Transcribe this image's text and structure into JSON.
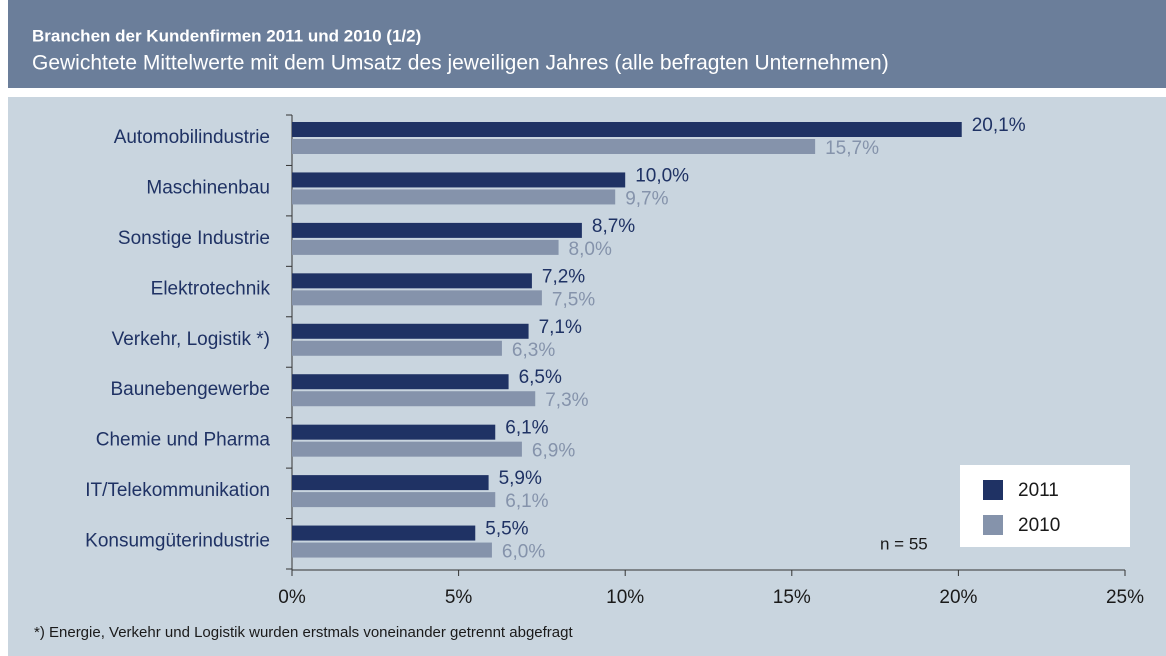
{
  "chart_data": {
    "type": "bar",
    "orientation": "horizontal",
    "title": "Branchen der Kundenfirmen 2011 und 2010 (1/2)",
    "subtitle": "Gewichtete Mittelwerte mit dem Umsatz des jeweiligen Jahres (alle befragten Unternehmen)",
    "categories": [
      "Automobilindustrie",
      "Maschinenbau",
      "Sonstige Industrie",
      "Elektrotechnik",
      "Verkehr, Logistik *)",
      "Baunebengewerbe",
      "Chemie und Pharma",
      "IT/Telekommunikation",
      "Konsumgüterindustrie"
    ],
    "series": [
      {
        "name": "2011",
        "color": "#1f3264",
        "label_color": "#1f3264",
        "values": [
          20.1,
          10.0,
          8.7,
          7.2,
          7.1,
          6.5,
          6.1,
          5.9,
          5.5
        ],
        "value_labels": [
          "20,1%",
          "10,0%",
          "8,7%",
          "7,2%",
          "7,1%",
          "6,5%",
          "6,1%",
          "5,9%",
          "5,5%"
        ]
      },
      {
        "name": "2010",
        "color": "#8593ab",
        "label_color": "#8593ab",
        "values": [
          15.7,
          9.7,
          8.0,
          7.5,
          6.3,
          7.3,
          6.9,
          6.1,
          6.0
        ],
        "value_labels": [
          "15,7%",
          "9,7%",
          "8,0%",
          "7,5%",
          "6,3%",
          "7,3%",
          "6,9%",
          "6,1%",
          "6,0%"
        ]
      }
    ],
    "xlim": [
      0,
      25
    ],
    "xticks": [
      {
        "value": 0,
        "label": "0%"
      },
      {
        "value": 5,
        "label": "5%"
      },
      {
        "value": 10,
        "label": "10%"
      },
      {
        "value": 15,
        "label": "15%"
      },
      {
        "value": 20,
        "label": "20%"
      },
      {
        "value": 25,
        "label": "25%"
      }
    ],
    "annotation": "n = 55",
    "footnote": "*) Energie, Verkehr und Logistik wurden erstmals voneinander getrennt abgefragt",
    "legend": "lower right"
  }
}
